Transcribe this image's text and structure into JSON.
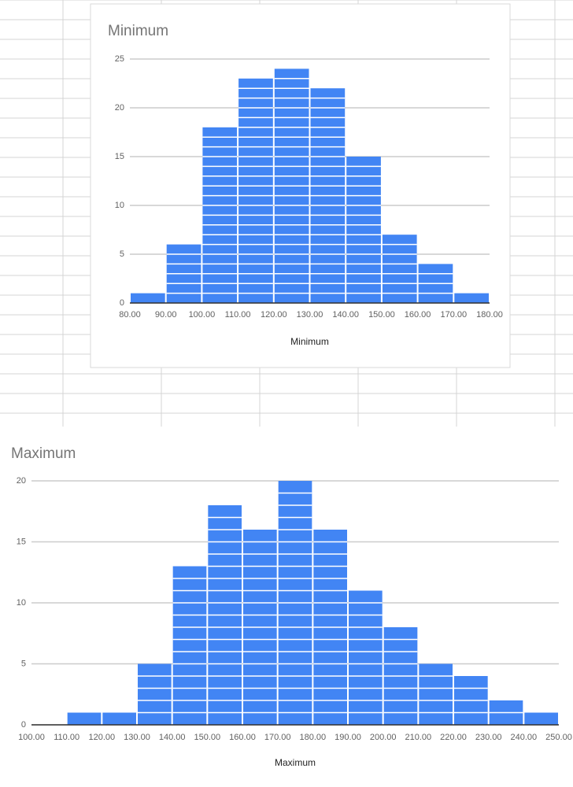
{
  "chart_data": [
    {
      "type": "histogram",
      "title": "Minimum",
      "x_label": "Minimum",
      "color": "#4285f4",
      "grid": true,
      "bins": [
        80,
        90,
        100,
        110,
        120,
        130,
        140,
        150,
        160,
        170,
        180
      ],
      "values": [
        1,
        6,
        18,
        23,
        24,
        22,
        15,
        7,
        4,
        1
      ],
      "xlim": [
        80,
        180
      ],
      "xticks": [
        {
          "value": 80,
          "label": "80.00"
        },
        {
          "value": 90,
          "label": "90.00"
        },
        {
          "value": 100,
          "label": "100.00"
        },
        {
          "value": 110,
          "label": "110.00"
        },
        {
          "value": 120,
          "label": "120.00"
        },
        {
          "value": 130,
          "label": "130.00"
        },
        {
          "value": 140,
          "label": "140.00"
        },
        {
          "value": 150,
          "label": "150.00"
        },
        {
          "value": 160,
          "label": "160.00"
        },
        {
          "value": 170,
          "label": "170.00"
        },
        {
          "value": 180,
          "label": "180.00"
        }
      ],
      "ylim": [
        0,
        25
      ],
      "yticks": [
        0,
        5,
        10,
        15,
        20,
        25
      ]
    },
    {
      "type": "histogram",
      "title": "Maximum",
      "x_label": "Maximum",
      "color": "#4285f4",
      "grid": true,
      "bins": [
        100,
        110,
        120,
        130,
        140,
        150,
        160,
        170,
        180,
        190,
        200,
        210,
        220,
        230,
        240,
        250
      ],
      "values": [
        0,
        1,
        1,
        5,
        13,
        18,
        16,
        20,
        16,
        11,
        8,
        5,
        4,
        2,
        1
      ],
      "xlim": [
        100,
        250
      ],
      "xticks": [
        {
          "value": 100,
          "label": "100.00"
        },
        {
          "value": 110,
          "label": "110.00"
        },
        {
          "value": 120,
          "label": "120.00"
        },
        {
          "value": 130,
          "label": "130.00"
        },
        {
          "value": 140,
          "label": "140.00"
        },
        {
          "value": 150,
          "label": "150.00"
        },
        {
          "value": 160,
          "label": "160.00"
        },
        {
          "value": 170,
          "label": "170.00"
        },
        {
          "value": 180,
          "label": "180.00"
        },
        {
          "value": 190,
          "label": "190.00"
        },
        {
          "value": 200,
          "label": "200.00"
        },
        {
          "value": 210,
          "label": "210.00"
        },
        {
          "value": 220,
          "label": "220.00"
        },
        {
          "value": 230,
          "label": "230.00"
        },
        {
          "value": 240,
          "label": "240.00"
        },
        {
          "value": 250,
          "label": "250.00"
        }
      ],
      "ylim": [
        0,
        20
      ],
      "yticks": [
        0,
        5,
        10,
        15,
        20
      ]
    }
  ]
}
